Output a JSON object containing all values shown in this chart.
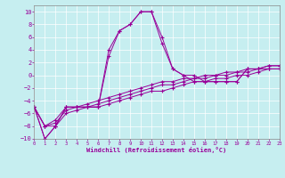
{
  "xlabel": "Windchill (Refroidissement éolien,°C)",
  "bg_color": "#c6eef0",
  "line_color": "#990099",
  "xmin": 0,
  "xmax": 23,
  "ymin": -10,
  "ymax": 11,
  "yticks": [
    -10,
    -8,
    -6,
    -4,
    -2,
    0,
    2,
    4,
    6,
    8,
    10
  ],
  "xticks": [
    0,
    1,
    2,
    3,
    4,
    5,
    6,
    7,
    8,
    9,
    10,
    11,
    12,
    13,
    14,
    15,
    16,
    17,
    18,
    19,
    20,
    21,
    22,
    23
  ],
  "series": [
    [
      -5,
      -10,
      -8,
      -5,
      -5,
      -5,
      -5,
      3,
      7,
      8,
      10,
      10,
      6,
      1,
      0,
      0,
      -1,
      -1,
      -1,
      -1,
      1,
      1,
      1,
      1
    ],
    [
      -5,
      -10,
      -8,
      -5,
      -5,
      -5,
      -5,
      4,
      7,
      8,
      10,
      10,
      5,
      1,
      0,
      -1,
      -1,
      -1,
      -1,
      -1,
      1,
      1,
      1,
      1
    ],
    [
      -5,
      -8,
      -7,
      -5,
      -5,
      -4.5,
      -4,
      -3.5,
      -3,
      -2.5,
      -2,
      -1.5,
      -1,
      -1,
      -0.5,
      -0.5,
      0,
      0,
      0.5,
      0.5,
      1,
      1,
      1.5,
      1.5
    ],
    [
      -5,
      -8,
      -7.5,
      -5.5,
      -5,
      -5,
      -4.5,
      -4,
      -3.5,
      -3,
      -2.5,
      -2,
      -1.5,
      -1.5,
      -1,
      -0.5,
      -0.5,
      0,
      0,
      0.5,
      0.5,
      1,
      1.5,
      1.5
    ],
    [
      -5,
      -8,
      -8,
      -6,
      -5.5,
      -5,
      -5,
      -4.5,
      -4,
      -3.5,
      -3,
      -2.5,
      -2.5,
      -2,
      -1.5,
      -1,
      -1,
      -0.5,
      -0.5,
      0,
      0,
      0.5,
      1,
      1
    ]
  ]
}
